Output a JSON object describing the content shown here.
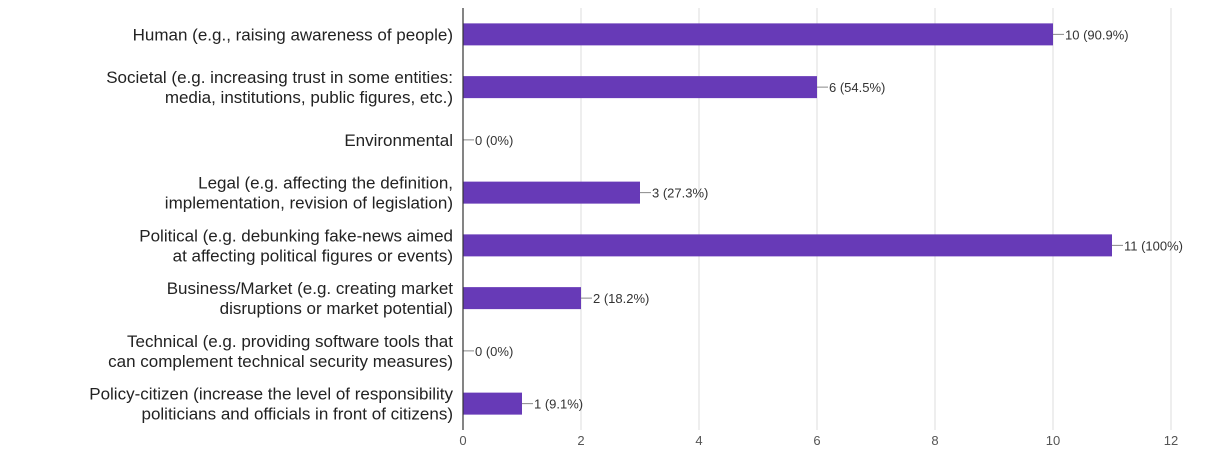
{
  "chart_data": {
    "type": "bar",
    "orientation": "horizontal",
    "categories": [
      [
        "Human (e.g., raising awareness of people)"
      ],
      [
        "Societal (e.g. increasing trust in some entities:",
        "media, institutions, public figures, etc.)"
      ],
      [
        "Environmental"
      ],
      [
        "Legal (e.g. affecting the definition,",
        "implementation, revision of legislation)"
      ],
      [
        "Political (e.g. debunking fake-news aimed",
        "at affecting political figures or events)"
      ],
      [
        "Business/Market (e.g. creating market",
        "disruptions or market potential)"
      ],
      [
        "Technical (e.g. providing software tools that",
        "can complement technical security measures)"
      ],
      [
        "Policy-citizen (increase the level of responsibility",
        "politicians and officials in front of citizens)"
      ]
    ],
    "values": [
      10,
      6,
      0,
      3,
      11,
      2,
      0,
      1
    ],
    "data_labels": [
      "10 (90.9%)",
      "6 (54.5%)",
      "0 (0%)",
      "3 (27.3%)",
      "11 (100%)",
      "2 (18.2%)",
      "0 (0%)",
      "1 (9.1%)"
    ],
    "xlim": [
      0,
      12
    ],
    "xticks": [
      0,
      2,
      4,
      6,
      8,
      10,
      12
    ],
    "grid": true,
    "legend": "none",
    "bar_color": "#673ab7",
    "grid_color": "#dddddd",
    "axis_color": "#333333"
  }
}
